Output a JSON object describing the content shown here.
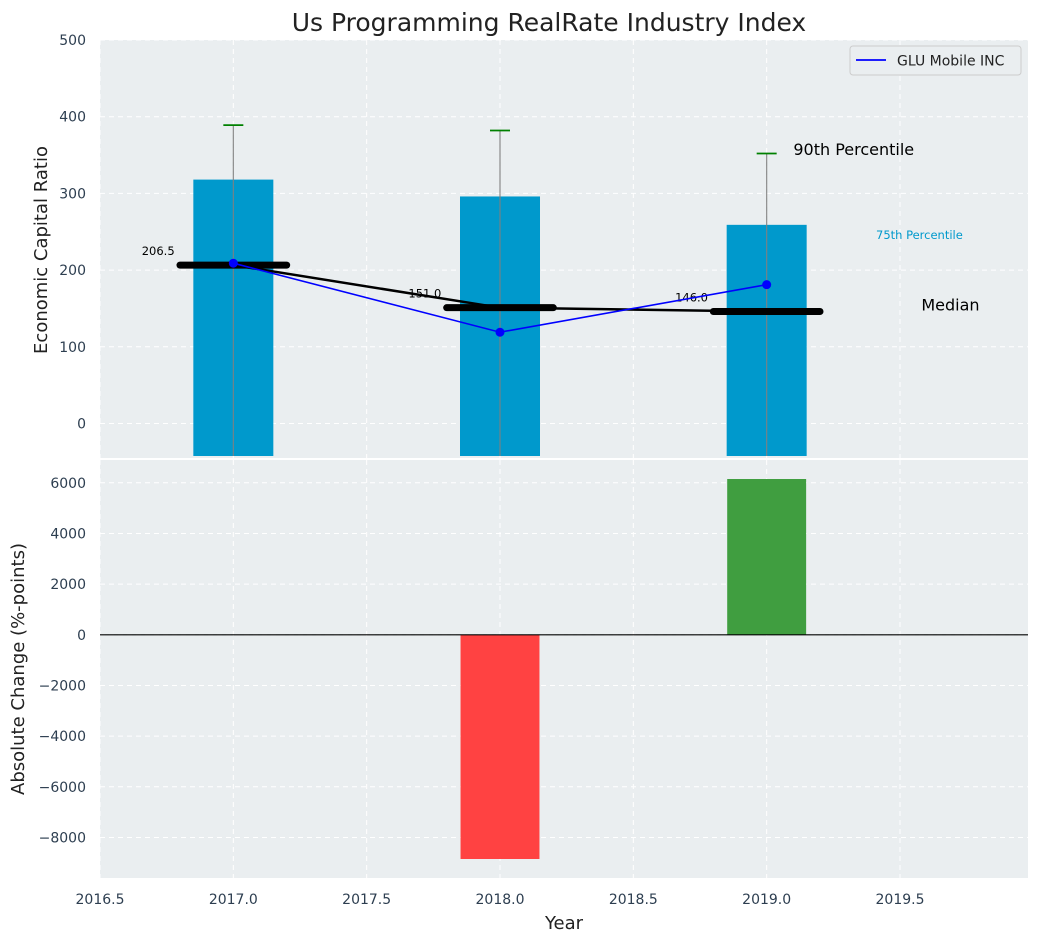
{
  "chart_data": [
    {
      "type": "bar",
      "title": "Us Programming RealRate Industry Index",
      "xlabel": "",
      "ylabel": "Economic Capital Ratio",
      "ylim": [
        -45,
        500
      ],
      "yticks": [
        0,
        100,
        200,
        300,
        400,
        500
      ],
      "x": [
        2017.0,
        2018.0,
        2019.0
      ],
      "percentile_75_bars": [
        318,
        296,
        259
      ],
      "percentile_90_whiskers": [
        389,
        382,
        352
      ],
      "medians": [
        206.5,
        151.0,
        146.0
      ],
      "median_labels": [
        "206.5",
        "151.0",
        "146.0"
      ],
      "series": [
        {
          "name": "GLU Mobile INC",
          "values": [
            209,
            119,
            181
          ],
          "color": "#0000ff"
        }
      ],
      "annotations": {
        "p90": "90th Percentile",
        "p75": "75th Percentile",
        "median": "Median"
      },
      "legend": "top-right",
      "grid": true,
      "colors": {
        "bar": "#0099cc",
        "whisker": "#808080",
        "whisker_cap": "#008000",
        "median": "#000000",
        "background": "#eaeef0"
      }
    },
    {
      "type": "bar",
      "xlabel": "Year",
      "ylabel": "Absolute Change (%-points)",
      "xlim": [
        2016.5,
        2019.98
      ],
      "xticks": [
        2016.5,
        2017.0,
        2017.5,
        2018.0,
        2018.5,
        2019.0,
        2019.5
      ],
      "xtick_labels": [
        "2016.5",
        "2017.0",
        "2017.5",
        "2018.0",
        "2018.5",
        "2019.0",
        "2019.5"
      ],
      "ylim": [
        -9600,
        6900
      ],
      "yticks": [
        -8000,
        -6000,
        -4000,
        -2000,
        0,
        2000,
        4000,
        6000
      ],
      "ytick_labels": [
        "−8000",
        "−6000",
        "−4000",
        "−2000",
        "0",
        "2000",
        "4000",
        "6000"
      ],
      "x": [
        2018.0,
        2019.0
      ],
      "values": [
        -8850,
        6150
      ],
      "colors": {
        "negative": "#ff3e3e",
        "positive": "#3c9c3c"
      },
      "grid": true
    }
  ]
}
